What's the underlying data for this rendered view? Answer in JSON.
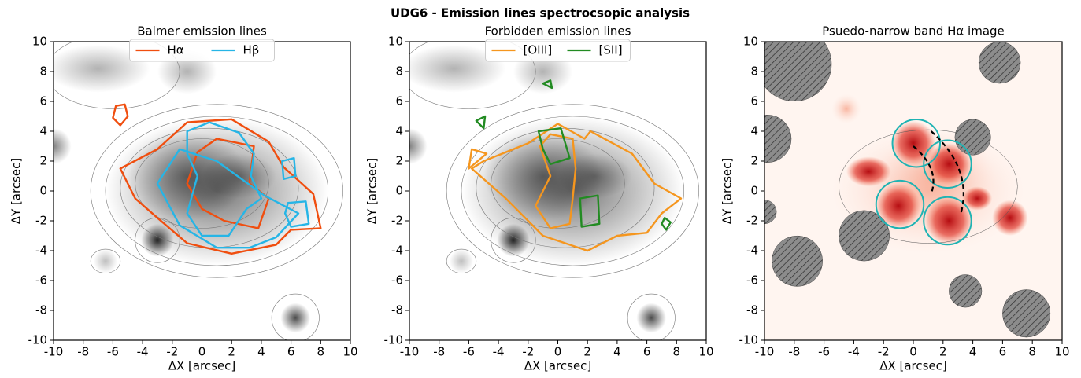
{
  "suptitle": "UDG6 - Emission lines spectrocsopic analysis",
  "chart_data": [
    {
      "type": "image",
      "title": "Balmer emission lines",
      "xlabel": "ΔX [arcsec]",
      "ylabel": "ΔY [arcsec]",
      "xlim": [
        -10,
        10
      ],
      "ylim": [
        -10,
        10
      ],
      "xticks": [
        -10,
        -8,
        -6,
        -4,
        -2,
        0,
        2,
        4,
        6,
        8,
        10
      ],
      "yticks": [
        -10,
        -8,
        -6,
        -4,
        -2,
        0,
        2,
        4,
        6,
        8,
        10
      ],
      "colormap": "gray",
      "series": [
        {
          "name": "Hα",
          "color": "#f04e0f"
        },
        {
          "name": "Hβ",
          "color": "#26b5e6"
        }
      ]
    },
    {
      "type": "image",
      "title": "Forbidden emission lines",
      "xlabel": "ΔX [arcsec]",
      "ylabel": "ΔY [arcsec]",
      "xlim": [
        -10,
        10
      ],
      "ylim": [
        -10,
        10
      ],
      "xticks": [
        -10,
        -8,
        -6,
        -4,
        -2,
        0,
        2,
        4,
        6,
        8,
        10
      ],
      "yticks": [
        -10,
        -8,
        -6,
        -4,
        -2,
        0,
        2,
        4,
        6,
        8,
        10
      ],
      "colormap": "gray",
      "series": [
        {
          "name": "[OIII]",
          "color": "#f5961e"
        },
        {
          "name": "[SII]",
          "color": "#228b22"
        }
      ]
    },
    {
      "type": "image",
      "title": "Psuedo-narrow band Hα image",
      "xlabel": "ΔX [arcsec]",
      "ylabel": "ΔY [arcsec]",
      "xlim": [
        -10,
        10
      ],
      "ylim": [
        -10,
        10
      ],
      "xticks": [
        -10,
        -8,
        -6,
        -4,
        -2,
        0,
        2,
        4,
        6,
        8,
        10
      ],
      "yticks": [
        -10,
        -8,
        -6,
        -4,
        -2,
        0,
        2,
        4,
        6,
        8,
        10
      ],
      "colormap": "reds"
    }
  ]
}
